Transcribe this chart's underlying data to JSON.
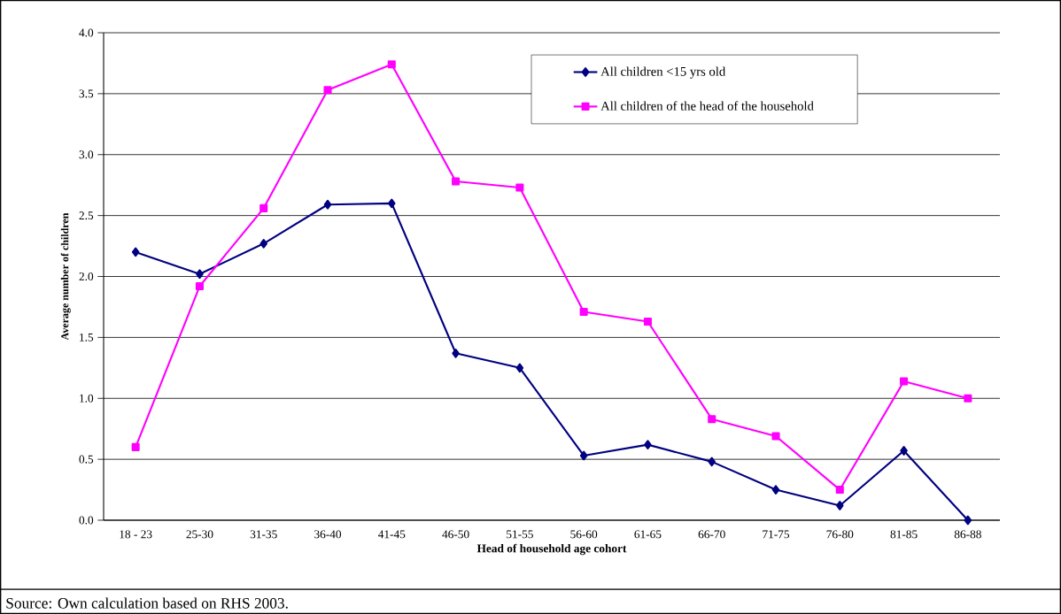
{
  "chart_data": {
    "type": "line",
    "xlabel": "Head of household age cohort",
    "ylabel": "Average number of children",
    "categories": [
      "18 - 23",
      "25-30",
      "31-35",
      "36-40",
      "41-45",
      "46-50",
      "51-55",
      "56-60",
      "61-65",
      "66-70",
      "71-75",
      "76-80",
      "81-85",
      "86-88"
    ],
    "series": [
      {
        "name": "All children <15 yrs old",
        "color": "#000080",
        "marker": "diamond",
        "values": [
          2.2,
          2.02,
          2.27,
          2.59,
          2.6,
          1.37,
          1.25,
          0.53,
          0.62,
          0.48,
          0.25,
          0.12,
          0.57,
          0.0
        ]
      },
      {
        "name": "All children of the head of the household",
        "color": "#ff00ff",
        "marker": "square",
        "values": [
          0.6,
          1.92,
          2.56,
          3.53,
          3.74,
          2.78,
          2.73,
          1.71,
          1.63,
          0.83,
          0.69,
          0.25,
          1.14,
          1.0
        ]
      }
    ],
    "ylim": [
      0,
      4
    ],
    "yticks": [
      {
        "value": 0,
        "label": "0.0"
      },
      {
        "value": 0.5,
        "label": "0.5"
      },
      {
        "value": 1,
        "label": "1.0"
      },
      {
        "value": 1.5,
        "label": "1.5"
      },
      {
        "value": 2,
        "label": "2.0"
      },
      {
        "value": 2.5,
        "label": "2.5"
      },
      {
        "value": 3,
        "label": "3.0"
      },
      {
        "value": 3.5,
        "label": "3.5"
      },
      {
        "value": 4,
        "label": "4.0"
      }
    ],
    "grid": "y",
    "legend": "top right",
    "line_style": "solid",
    "annotations": [
      "Source: Own calculation based on RHS 2003."
    ]
  }
}
